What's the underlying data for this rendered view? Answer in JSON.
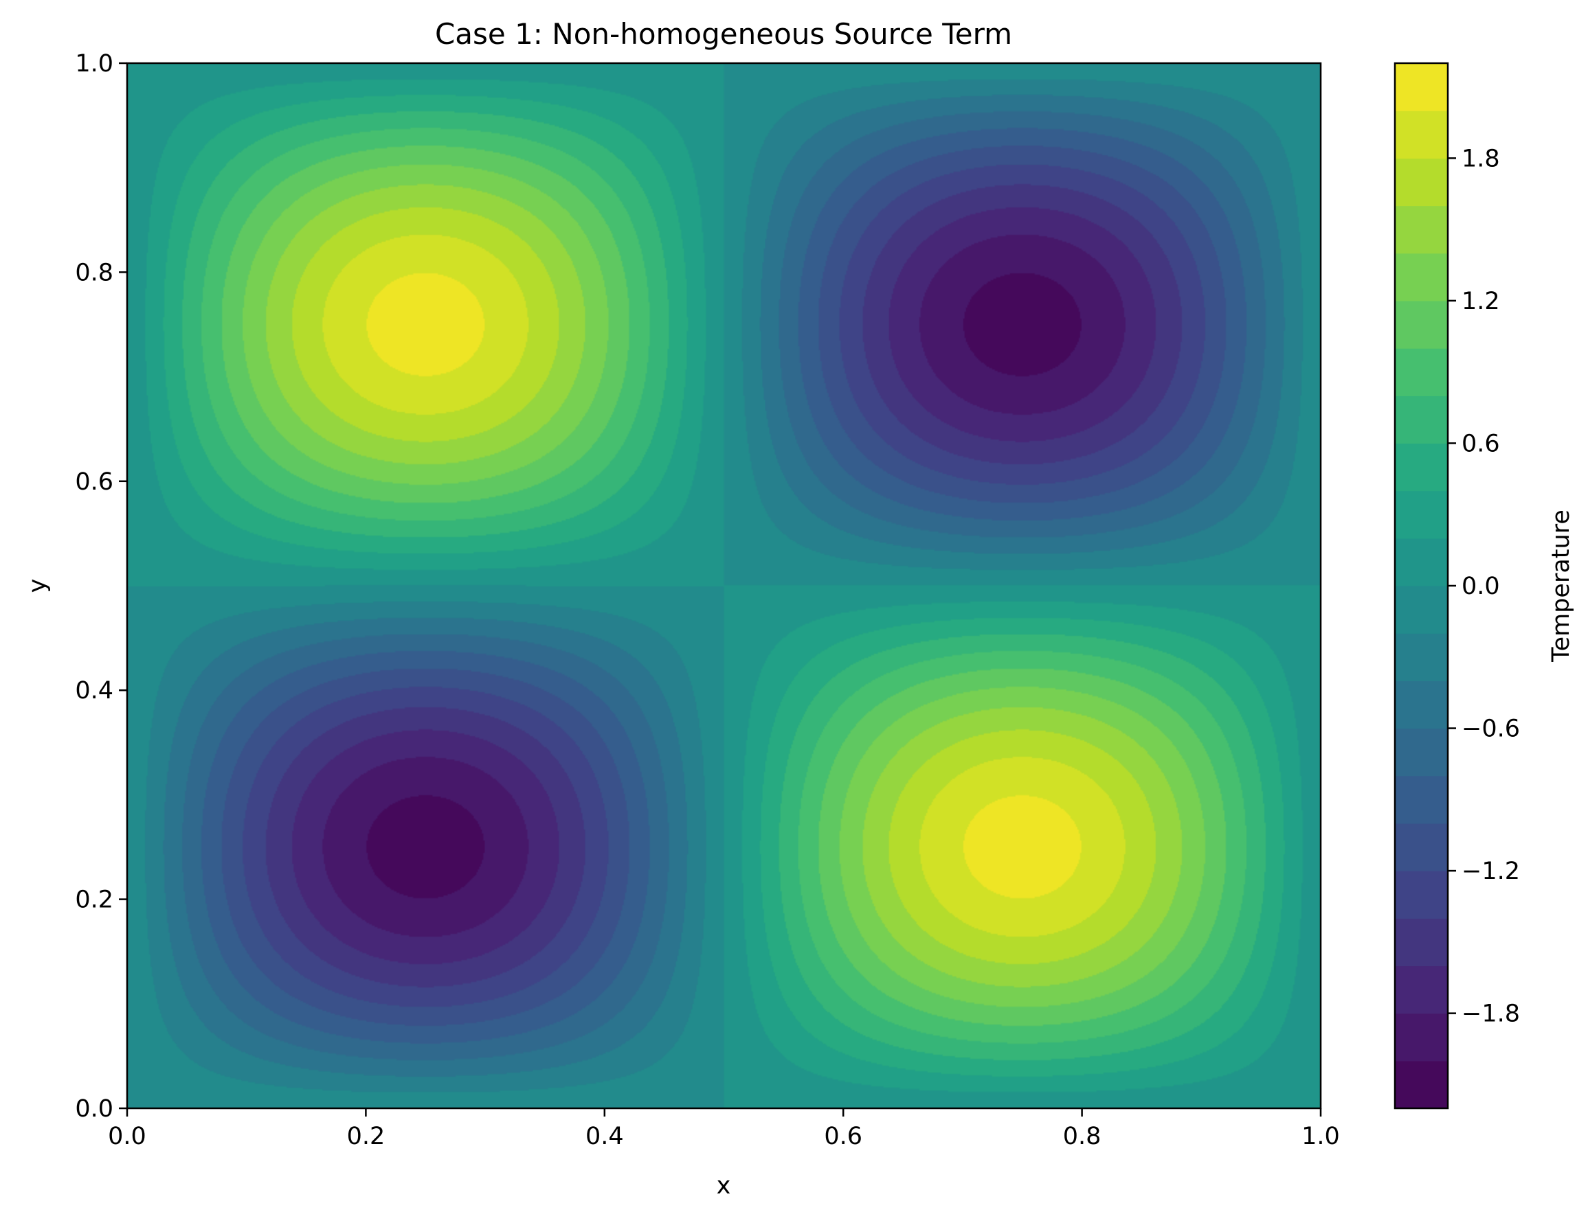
{
  "chart_data": {
    "type": "heatmap",
    "plot_kind": "filled contour",
    "title": "Case 1: Non-homogeneous Source Term",
    "xlabel": "x",
    "ylabel": "y",
    "xlim": [
      0.0,
      1.0
    ],
    "ylim": [
      0.0,
      1.0
    ],
    "x_ticks": [
      0.0,
      0.2,
      0.4,
      0.6,
      0.8,
      1.0
    ],
    "x_tick_labels": [
      "0.0",
      "0.2",
      "0.4",
      "0.6",
      "0.8",
      "1.0"
    ],
    "y_ticks": [
      0.0,
      0.2,
      0.4,
      0.6,
      0.8,
      1.0
    ],
    "y_tick_labels": [
      "0.0",
      "0.2",
      "0.4",
      "0.6",
      "0.8",
      "1.0"
    ],
    "field": {
      "expression": "2.2 * sin(2*pi*x) * sin(2*pi*y) mapped so that maxima sit at (0.25, 0.75) and (0.75, 0.25), minima at (0.75, 0.75) and (0.25, 0.25)",
      "extrema": [
        {
          "x": 0.25,
          "y": 0.75,
          "value": 2.1
        },
        {
          "x": 0.75,
          "y": 0.75,
          "value": -2.1
        },
        {
          "x": 0.25,
          "y": 0.25,
          "value": -2.1
        },
        {
          "x": 0.75,
          "y": 0.25,
          "value": 2.1
        }
      ]
    },
    "levels_range": [
      -2.2,
      2.2
    ],
    "level_step": 0.2,
    "colormap": "viridis",
    "grid": false,
    "colorbar": {
      "label": "Temperature",
      "ticks": [
        -1.8,
        -1.2,
        -0.6,
        0.0,
        0.6,
        1.2,
        1.8
      ],
      "tick_labels": [
        "−1.8",
        "−1.2",
        "−0.6",
        "0.0",
        "0.6",
        "1.2",
        "1.8"
      ],
      "range": [
        -2.2,
        2.2
      ]
    }
  }
}
